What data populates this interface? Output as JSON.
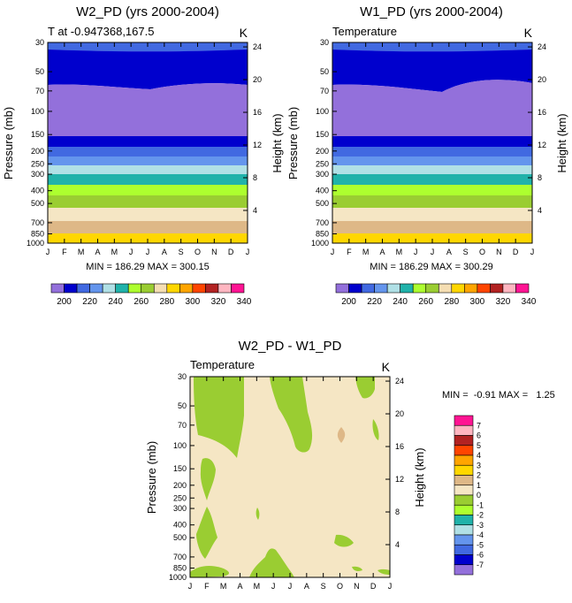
{
  "chart_data": [
    {
      "type": "contour",
      "title": "W2_PD (yrs 2000-2004)",
      "left_label": "T at -0.947368,167.5",
      "right_label": "K",
      "ylabel": "Pressure (mb)",
      "ylabel_right": "Height (km)",
      "x_ticks": [
        "J",
        "F",
        "M",
        "A",
        "M",
        "J",
        "J",
        "A",
        "S",
        "O",
        "N",
        "D",
        "J"
      ],
      "y_ticks": [
        "30",
        "50",
        "70",
        "100",
        "150",
        "200",
        "250",
        "300",
        "400",
        "500",
        "700",
        "850",
        "1000"
      ],
      "y_ticks_right": [
        "24",
        "20",
        "16",
        "12",
        "8",
        "4"
      ],
      "stats": "MIN = 186.29 MAX = 300.15",
      "colorbar_labels": [
        "200",
        "220",
        "240",
        "260",
        "280",
        "300",
        "320",
        "340"
      ],
      "min": 186.29,
      "max": 300.15
    },
    {
      "type": "contour",
      "title": "W1_PD (yrs 2000-2004)",
      "left_label": "Temperature",
      "right_label": "K",
      "ylabel": "Pressure (mb)",
      "ylabel_right": "Height (km)",
      "x_ticks": [
        "J",
        "F",
        "M",
        "A",
        "M",
        "J",
        "J",
        "A",
        "S",
        "O",
        "N",
        "D",
        "J"
      ],
      "y_ticks": [
        "30",
        "50",
        "70",
        "100",
        "150",
        "200",
        "250",
        "300",
        "400",
        "500",
        "700",
        "850",
        "1000"
      ],
      "y_ticks_right": [
        "24",
        "20",
        "16",
        "12",
        "8",
        "4"
      ],
      "stats": "MIN = 186.29 MAX = 300.29",
      "colorbar_labels": [
        "200",
        "220",
        "240",
        "260",
        "280",
        "300",
        "320",
        "340"
      ],
      "min": 186.29,
      "max": 300.29
    },
    {
      "type": "contour",
      "title": "W2_PD - W1_PD",
      "left_label": "Temperature",
      "right_label": "K",
      "ylabel": "Pressure (mb)",
      "ylabel_right": "Height (km)",
      "x_ticks": [
        "J",
        "F",
        "M",
        "A",
        "M",
        "J",
        "J",
        "A",
        "S",
        "O",
        "N",
        "D",
        "J"
      ],
      "y_ticks": [
        "30",
        "50",
        "70",
        "100",
        "150",
        "200",
        "250",
        "300",
        "400",
        "500",
        "700",
        "850",
        "1000"
      ],
      "y_ticks_right": [
        "24",
        "20",
        "16",
        "12",
        "8",
        "4"
      ],
      "stats": "MIN =  -0.91 MAX =   1.25",
      "colorbar_labels": [
        "7",
        "6",
        "5",
        "4",
        "3",
        "2",
        "1",
        "0",
        "-1",
        "-2",
        "-3",
        "-4",
        "-5",
        "-6",
        "-7"
      ],
      "min": -0.91,
      "max": 1.25
    }
  ],
  "palette_temp": [
    "#9370db",
    "#0000cd",
    "#4169e1",
    "#6495ed",
    "#b0e0e6",
    "#20b2aa",
    "#adff2f",
    "#9acd32",
    "#f5deb3",
    "#ffd700",
    "#ffa500",
    "#ff4500",
    "#b22222",
    "#ffb6c1",
    "#ff1493"
  ],
  "palette_diff": [
    "#ff1493",
    "#ffb6c1",
    "#b22222",
    "#ff4500",
    "#ffa500",
    "#ffd700",
    "#deb887",
    "#f5e6c4",
    "#9acd32",
    "#adff2f",
    "#20b2aa",
    "#b0e0e6",
    "#6495ed",
    "#4169e1",
    "#0000cd",
    "#9370db"
  ],
  "band_colors": {
    "purple": "#9370db",
    "navy": "#0000cd",
    "royal": "#4169e1",
    "cornflower": "#6495ed",
    "powder": "#b0e0e6",
    "teal": "#20b2aa",
    "lime": "#adff2f",
    "olive": "#9acd32",
    "wheat": "#f5e6c4",
    "tan": "#deb887",
    "gold": "#ffd700"
  }
}
